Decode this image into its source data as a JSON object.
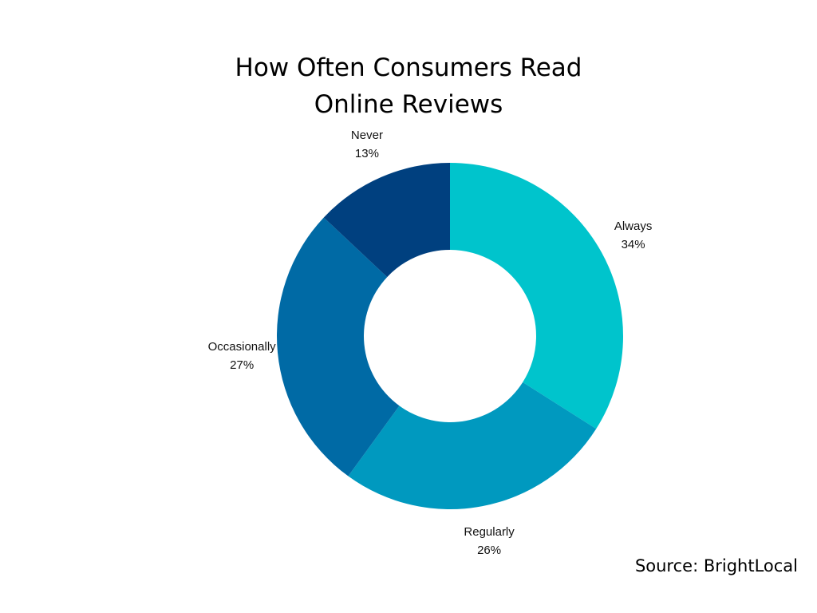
{
  "chart_data": {
    "type": "pie",
    "title_lines": [
      "How Often Consumers Read",
      "Online Reviews"
    ],
    "slices": [
      {
        "label": "Always",
        "value": 34,
        "value_label": "34%",
        "color": "#00c4cc"
      },
      {
        "label": "Regularly",
        "value": 26,
        "value_label": "26%",
        "color": "#0099bf"
      },
      {
        "label": "Occasionally",
        "value": 27,
        "value_label": "27%",
        "color": "#006aa5"
      },
      {
        "label": "Never",
        "value": 13,
        "value_label": "13%",
        "color": "#00407f"
      }
    ],
    "donut": true,
    "legend": "none"
  },
  "source": "Source: BrightLocal"
}
